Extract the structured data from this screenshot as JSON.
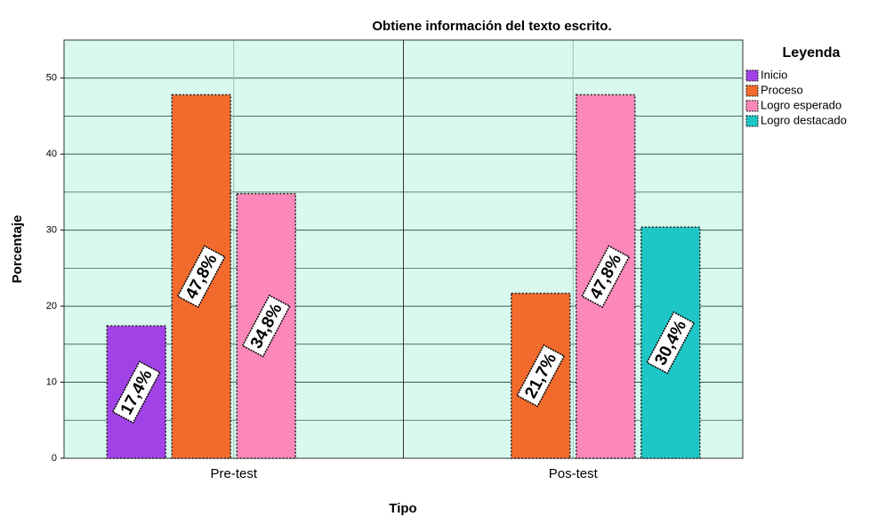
{
  "chart_data": {
    "type": "bar",
    "title": "Obtiene información del texto escrito.",
    "x_label": "Tipo",
    "y_label": "Porcentaje",
    "legend_title": "Leyenda",
    "legend": "right",
    "categories": [
      "Pre-test",
      "Pos-test"
    ],
    "series": [
      {
        "name": "Inicio",
        "color": "#a142e6",
        "values": [
          17.4,
          null
        ],
        "value_labels": [
          "17,4%",
          null
        ]
      },
      {
        "name": "Proceso",
        "color": "#f26b2c",
        "values": [
          47.8,
          21.7
        ],
        "value_labels": [
          "47,8%",
          "21,7%"
        ]
      },
      {
        "name": "Logro esperado",
        "color": "#fb88b9",
        "values": [
          34.8,
          47.8
        ],
        "value_labels": [
          "34,8%",
          "47,8%"
        ]
      },
      {
        "name": "Logro destacado",
        "color": "#1fc6c6",
        "values": [
          null,
          30.4
        ],
        "value_labels": [
          null,
          "30,4%"
        ]
      }
    ],
    "ylim": [
      0,
      55
    ],
    "yticks": [
      0,
      10,
      20,
      30,
      40,
      50
    ],
    "minor_yticks": [
      5,
      15,
      25,
      35,
      45,
      55
    ],
    "grid": true
  }
}
